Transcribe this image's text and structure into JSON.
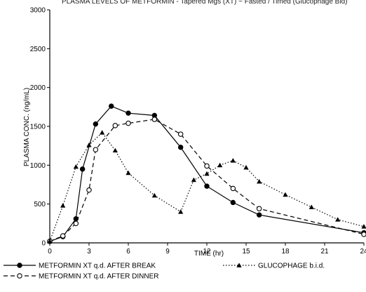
{
  "caption_fragment": "PLASMA LEVELS OF METFORMIN - Tapered Mgs (XT) ~ Fasted / Timed (Glucophage Bid)",
  "chart_data": {
    "type": "line",
    "xlabel": "TIME (hr)",
    "ylabel": "PLASMA CONC. (ng/mL)",
    "xlim": [
      0,
      24
    ],
    "ylim": [
      0,
      3000
    ],
    "xticks": [
      0,
      3,
      6,
      9,
      12,
      15,
      18,
      21,
      24
    ],
    "yticks": [
      0,
      500,
      1000,
      1500,
      2000,
      2500,
      3000
    ],
    "xtick_labels": [
      "0",
      "3",
      "6",
      "9",
      "12",
      "15",
      "18",
      "21",
      "24"
    ],
    "ytick_labels": [
      "0",
      "500",
      "1000",
      "1500",
      "2000",
      "2500",
      "3000"
    ],
    "grid": false,
    "legend_position": "bottom",
    "series": [
      {
        "name": "METFORMIN XT q.d. AFTER BREAK",
        "line": "solid",
        "marker": "filled-circle",
        "x": [
          0,
          1,
          2,
          2.5,
          3.5,
          4.7,
          6,
          8,
          10,
          12,
          14,
          16,
          24
        ],
        "y": [
          20,
          80,
          310,
          950,
          1530,
          1760,
          1670,
          1640,
          1230,
          730,
          520,
          360,
          130
        ]
      },
      {
        "name": "METFORMIN XT q.d. AFTER DINNER",
        "line": "dashed",
        "marker": "open-circle",
        "x": [
          0,
          1,
          2,
          3,
          3.5,
          5,
          6,
          8,
          10,
          12,
          14,
          16,
          24
        ],
        "y": [
          20,
          90,
          250,
          680,
          1200,
          1510,
          1540,
          1590,
          1400,
          990,
          700,
          440,
          110
        ]
      },
      {
        "name": "GLUCOPHAGE b.i.d.",
        "line": "dotted",
        "marker": "filled-triangle",
        "x": [
          0,
          1,
          2,
          3,
          4,
          5,
          6,
          8,
          10,
          11,
          12,
          13,
          14,
          15,
          16,
          18,
          20,
          22,
          24
        ],
        "y": [
          20,
          480,
          980,
          1260,
          1420,
          1190,
          900,
          610,
          400,
          810,
          890,
          1000,
          1060,
          970,
          790,
          620,
          460,
          300,
          210
        ]
      }
    ]
  }
}
